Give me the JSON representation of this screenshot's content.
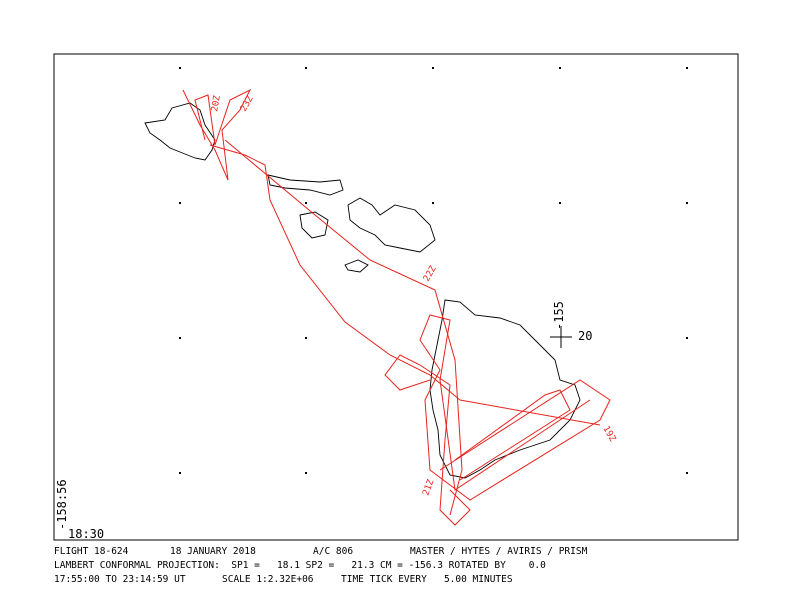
{
  "map": {
    "corner_lon": "-158:56",
    "corner_lat": "18:30",
    "ref_lon": "-155",
    "ref_lat": "20",
    "time_labels": [
      "23Z",
      "20Z",
      "22Z",
      "21Z",
      "19Z"
    ]
  },
  "footer": {
    "line1": [
      "FLIGHT 18-624",
      "18 JANUARY 2018",
      "A/C 806",
      "MASTER / HYTES / AVIRIS / PRISM"
    ],
    "line2": "LAMBERT CONFORMAL PROJECTION:  SP1 =   18.1 SP2 =   21.3 CM = -156.3 ROTATED BY    0.0",
    "line3": [
      "17:55:00 TO 23:14:59 UT",
      "SCALE 1:2.32E+06",
      "TIME TICK EVERY   5.00 MINUTES"
    ]
  }
}
